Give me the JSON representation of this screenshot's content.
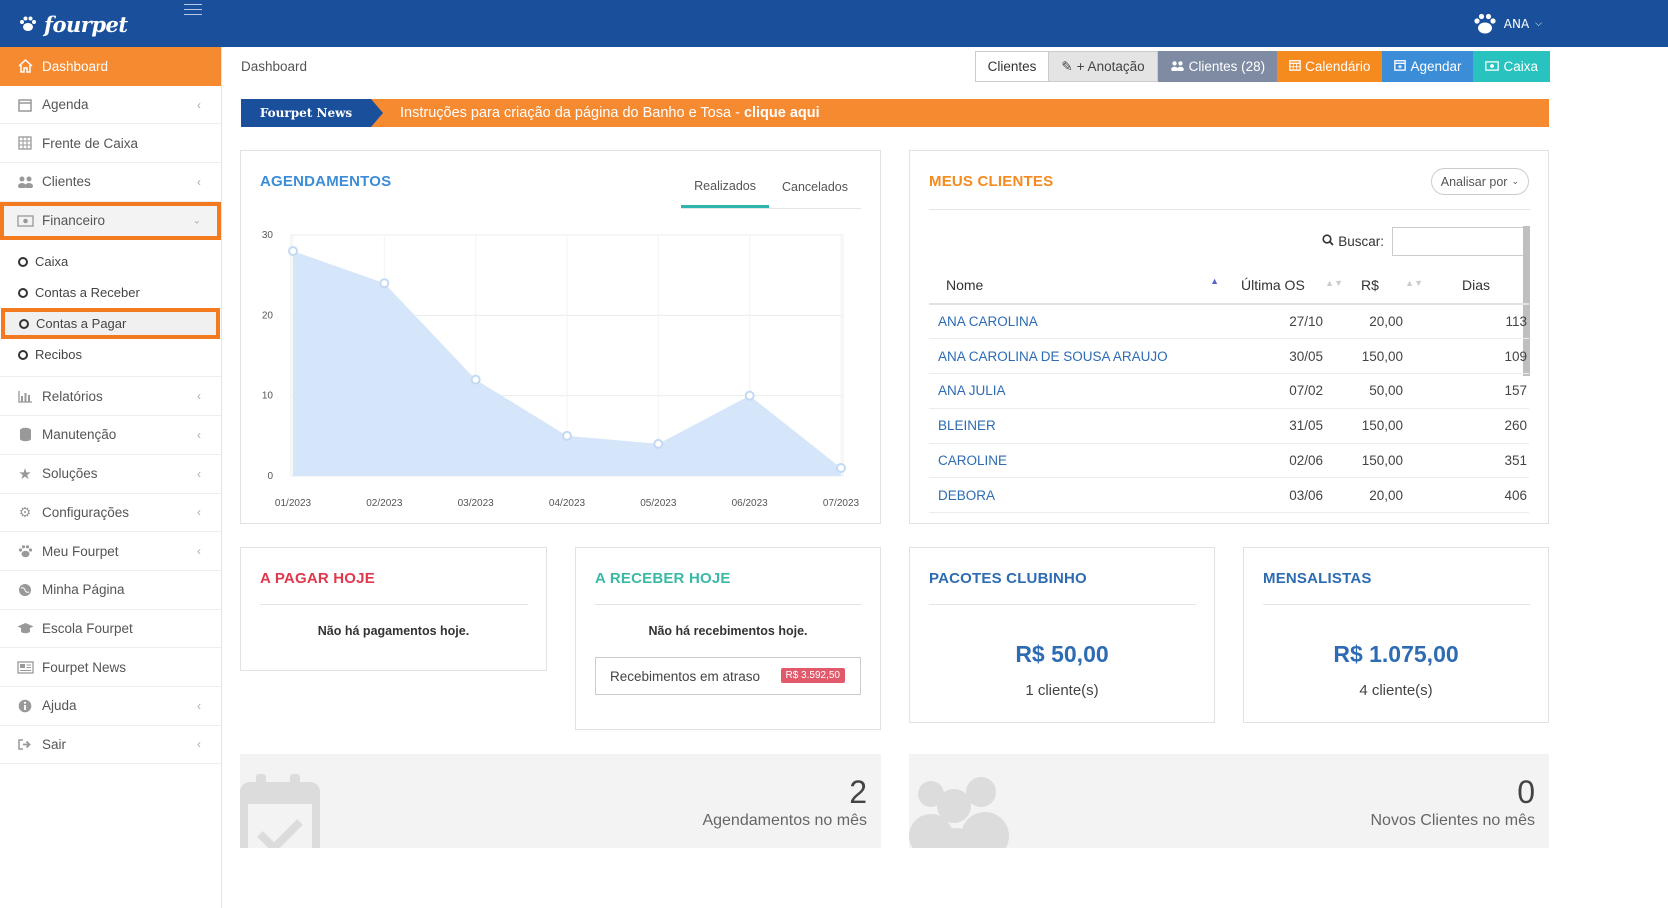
{
  "app": {
    "brand": "fourpet",
    "user": "ANA"
  },
  "sidebar": {
    "items": [
      {
        "label": "Dashboard",
        "icon": "home-icon"
      },
      {
        "label": "Agenda",
        "icon": "calendar-icon"
      },
      {
        "label": "Frente de Caixa",
        "icon": "grid-icon"
      },
      {
        "label": "Clientes",
        "icon": "users-icon"
      },
      {
        "label": "Financeiro",
        "icon": "money-icon"
      },
      {
        "label": "Relatórios",
        "icon": "bar-chart-icon"
      },
      {
        "label": "Manutenção",
        "icon": "database-icon"
      },
      {
        "label": "Soluções",
        "icon": "star-icon"
      },
      {
        "label": "Configurações",
        "icon": "gears-icon"
      },
      {
        "label": "Meu Fourpet",
        "icon": "paw-icon"
      },
      {
        "label": "Minha Página",
        "icon": "globe-icon"
      },
      {
        "label": "Escola Fourpet",
        "icon": "graduation-icon"
      },
      {
        "label": "Fourpet News",
        "icon": "newspaper-icon"
      },
      {
        "label": "Ajuda",
        "icon": "info-icon"
      },
      {
        "label": "Sair",
        "icon": "signout-icon"
      }
    ],
    "financeiro_sub": [
      {
        "label": "Caixa"
      },
      {
        "label": "Contas a Receber"
      },
      {
        "label": "Contas a Pagar"
      },
      {
        "label": "Recibos"
      }
    ]
  },
  "header": {
    "breadcrumb": "Dashboard",
    "buttons": {
      "clientes": "Clientes",
      "anotacao": "+ Anotação",
      "clientes_count": "Clientes (28)",
      "calendario": "Calendário",
      "agendar": "Agendar",
      "caixa": "Caixa"
    }
  },
  "news": {
    "tag": "Fourpet News",
    "text": "Instruções para criação da página do Banho e Tosa - ",
    "link": "clique aqui"
  },
  "agendamentos": {
    "title": "AGENDAMENTOS",
    "tab_realizados": "Realizados",
    "tab_cancelados": "Cancelados"
  },
  "chart_data": {
    "type": "area",
    "title": "AGENDAMENTOS",
    "categories": [
      "01/2023",
      "02/2023",
      "03/2023",
      "04/2023",
      "05/2023",
      "06/2023",
      "07/2023"
    ],
    "values": [
      28,
      24,
      12,
      5,
      4,
      10,
      1
    ],
    "ylim": [
      0,
      30
    ],
    "yticks": [
      0,
      10,
      20,
      30
    ],
    "grid": true,
    "color": "#d5e6fa"
  },
  "clientes": {
    "title": "MEUS CLIENTES",
    "analisar": "Analisar por",
    "search_label": "Buscar:",
    "columns": [
      "Nome",
      "Última OS",
      "R$",
      "Dias"
    ],
    "rows": [
      {
        "nome": "ANA CAROLINA",
        "ultima": "27/10",
        "valor": "20,00",
        "dias": "113"
      },
      {
        "nome": "ANA CAROLINA DE SOUSA ARAUJO",
        "ultima": "30/05",
        "valor": "150,00",
        "dias": "109"
      },
      {
        "nome": "ANA JULIA",
        "ultima": "07/02",
        "valor": "50,00",
        "dias": "157"
      },
      {
        "nome": "BLEINER",
        "ultima": "31/05",
        "valor": "150,00",
        "dias": "260"
      },
      {
        "nome": "CAROLINE",
        "ultima": "02/06",
        "valor": "150,00",
        "dias": "351"
      },
      {
        "nome": "DEBORA",
        "ultima": "03/06",
        "valor": "20,00",
        "dias": "406"
      }
    ]
  },
  "pagar": {
    "title": "A PAGAR HOJE",
    "message": "Não há pagamentos hoje."
  },
  "receber": {
    "title": "A RECEBER HOJE",
    "message": "Não há recebimentos hoje.",
    "late_label": "Recebimentos em atraso",
    "late_value": "R$ 3.592,50"
  },
  "pacotes": {
    "title": "PACOTES CLUBINHO",
    "value": "R$ 50,00",
    "sub": "1 cliente(s)"
  },
  "mensalistas": {
    "title": "MENSALISTAS",
    "value": "R$ 1.075,00",
    "sub": "4 cliente(s)"
  },
  "stats": {
    "agendamentos_num": "2",
    "agendamentos_label": "Agendamentos no mês",
    "novos_num": "0",
    "novos_label": "Novos Clientes no mês"
  },
  "colors": {
    "topbar": "#1a4f9c",
    "accent_orange": "#f58a31",
    "highlight": "#f47a20"
  }
}
